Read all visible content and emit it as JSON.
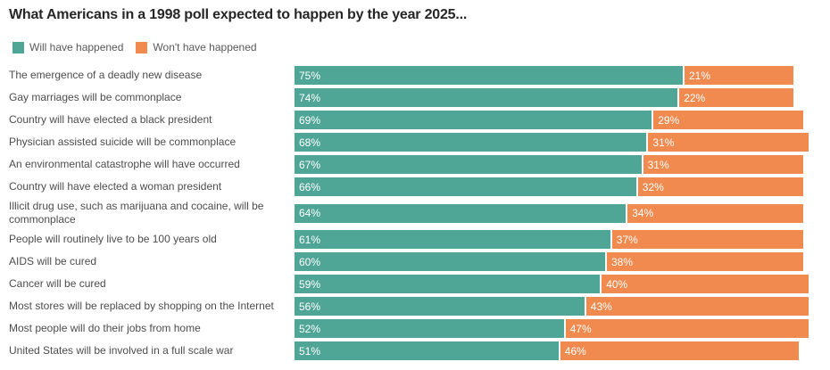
{
  "title": "What Americans in a 1998 poll expected to happen by the year 2025...",
  "legend": [
    {
      "label": "Will have happened",
      "color": "#4FA596"
    },
    {
      "label": "Won't have happened",
      "color": "#F08A4E"
    }
  ],
  "colors": {
    "will": "#4FA596",
    "wont": "#F08A4E",
    "title_text": "#262626",
    "label_text": "#4d4d4d",
    "value_text": "#ffffff",
    "background": "#ffffff"
  },
  "chart_data": {
    "type": "bar",
    "orientation": "horizontal",
    "stacked": true,
    "title": "What Americans in a 1998 poll expected to happen by the year 2025...",
    "xlabel": "",
    "ylabel": "",
    "xlim": [
      0,
      100
    ],
    "grid": false,
    "legend_position": "top",
    "value_suffix": "%",
    "categories": [
      "The emergence of a deadly new disease",
      "Gay marriages will be commonplace",
      "Country will have elected a black president",
      "Physician assisted suicide will be commonplace",
      "An environmental catastrophe will have occurred",
      "Country will have elected a woman president",
      "Illicit drug use, such as marijuana and cocaine, will be commonplace",
      "People will routinely live to be 100 years old",
      "AIDS will be cured",
      "Cancer will be cured",
      "Most stores will be replaced by shopping on the Internet",
      "Most people will do their jobs from home",
      "United States will be involved in a full scale war"
    ],
    "series": [
      {
        "name": "Will have happened",
        "color": "#4FA596",
        "values": [
          75,
          74,
          69,
          68,
          67,
          66,
          64,
          61,
          60,
          59,
          56,
          52,
          51
        ]
      },
      {
        "name": "Won't have happened",
        "color": "#F08A4E",
        "values": [
          21,
          22,
          29,
          31,
          31,
          32,
          34,
          37,
          38,
          40,
          43,
          47,
          46
        ]
      }
    ]
  }
}
